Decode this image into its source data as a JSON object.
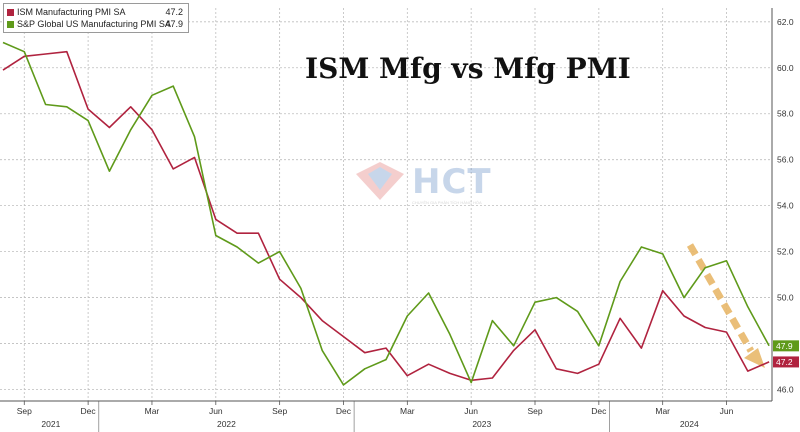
{
  "chart_data": {
    "type": "line",
    "title": "ISM Mfg vs Mfg PMI",
    "xlabel": "",
    "ylabel": "",
    "x_tick_labels": [
      "Sep",
      "Dec",
      "Mar",
      "Jun",
      "Sep",
      "Dec",
      "Mar",
      "Jun",
      "Sep",
      "Dec",
      "Mar",
      "Jun"
    ],
    "x_year_labels": [
      "2021",
      "2022",
      "2023",
      "2024"
    ],
    "y_ticks": [
      "46.0",
      "48.0",
      "50.0",
      "52.0",
      "54.0",
      "56.0",
      "58.0",
      "60.0",
      "62.0"
    ],
    "ylim": [
      45.5,
      62.6
    ],
    "grid": true,
    "legend_position": "top-left",
    "x": [
      "2021-08",
      "2021-09",
      "2021-10",
      "2021-11",
      "2021-12",
      "2022-01",
      "2022-02",
      "2022-03",
      "2022-04",
      "2022-05",
      "2022-06",
      "2022-07",
      "2022-08",
      "2022-09",
      "2022-10",
      "2022-11",
      "2022-12",
      "2023-01",
      "2023-02",
      "2023-03",
      "2023-04",
      "2023-05",
      "2023-06",
      "2023-07",
      "2023-08",
      "2023-09",
      "2023-10",
      "2023-11",
      "2023-12",
      "2024-01",
      "2024-02",
      "2024-03",
      "2024-04",
      "2024-05",
      "2024-06",
      "2024-07",
      "2024-08"
    ],
    "series": [
      {
        "name": "ISM Manufacturing PMI SA",
        "last_value_label": "47.2",
        "color": "#b0233f",
        "values": [
          59.9,
          60.5,
          60.6,
          60.7,
          58.2,
          57.4,
          58.3,
          57.3,
          55.6,
          56.1,
          53.4,
          52.8,
          52.8,
          50.8,
          50.0,
          49.0,
          48.3,
          47.6,
          47.8,
          46.6,
          47.1,
          46.7,
          46.4,
          46.5,
          47.7,
          48.6,
          46.9,
          46.7,
          47.1,
          49.1,
          47.8,
          50.3,
          49.2,
          48.7,
          48.5,
          46.8,
          47.2
        ]
      },
      {
        "name": "S&P Global US Manufacturing PMI SA",
        "last_value_label": "47.9",
        "color": "#5f9a1a",
        "values": [
          61.1,
          60.7,
          58.4,
          58.3,
          57.7,
          55.5,
          57.3,
          58.8,
          59.2,
          57.0,
          52.7,
          52.2,
          51.5,
          52.0,
          50.4,
          47.7,
          46.2,
          46.9,
          47.3,
          49.2,
          50.2,
          48.4,
          46.3,
          49.0,
          47.9,
          49.8,
          50.0,
          49.4,
          47.9,
          50.7,
          52.2,
          51.9,
          50.0,
          51.3,
          51.6,
          49.6,
          47.9
        ]
      }
    ]
  },
  "legend": {
    "items": [
      {
        "label": "ISM Manufacturing PMI SA",
        "value": "47.2"
      },
      {
        "label": "S&P Global US Manufacturing PMI SA",
        "value": "47.9"
      }
    ]
  },
  "watermark": {
    "text": "HCT",
    "subtext": "CHUYÊN GIA PHÂN TÍCH HÀNG HÓA"
  },
  "colors": {
    "ism": "#b0233f",
    "sp": "#5f9a1a",
    "arrow": "#e8b86a",
    "grid": "#bdbdbd",
    "axis": "#555555"
  }
}
